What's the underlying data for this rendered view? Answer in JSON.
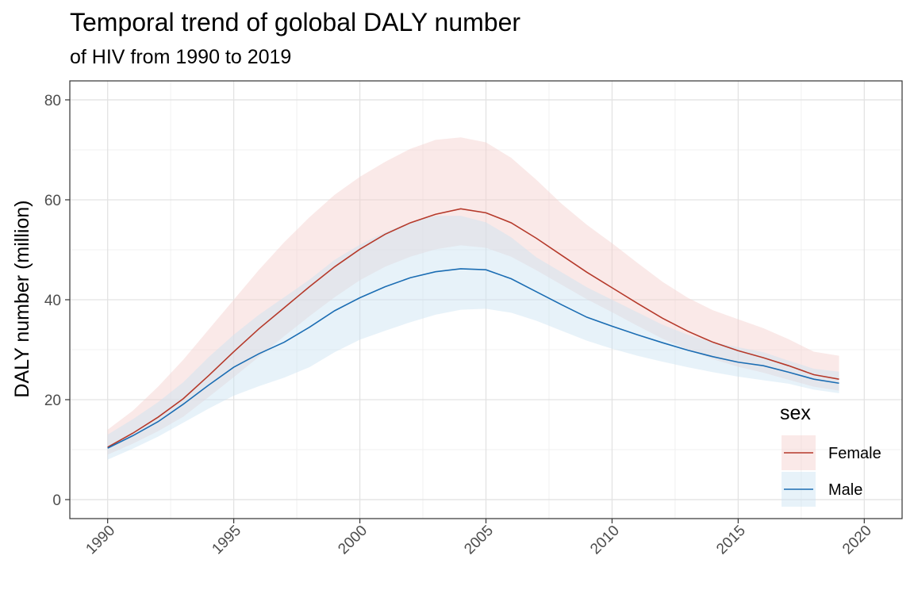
{
  "chart_data": {
    "type": "line",
    "title": "Temporal trend of golobal DALY number",
    "subtitle": "of HIV from 1990 to 2019",
    "xlabel": "",
    "ylabel": "DALY number (million)",
    "xlim": [
      1988.5,
      2021.5
    ],
    "ylim": [
      -3.8,
      83.8
    ],
    "x_ticks": [
      1990,
      1995,
      2000,
      2005,
      2010,
      2015,
      2020
    ],
    "y_ticks": [
      0,
      20,
      40,
      60,
      80
    ],
    "grid": true,
    "legend": {
      "title": "sex",
      "position": "bottom-right"
    },
    "x": [
      1990,
      1991,
      1992,
      1993,
      1994,
      1995,
      1996,
      1997,
      1998,
      1999,
      2000,
      2001,
      2002,
      2003,
      2004,
      2005,
      2006,
      2007,
      2008,
      2009,
      2010,
      2011,
      2012,
      2013,
      2014,
      2015,
      2016,
      2017,
      2018,
      2019
    ],
    "series": [
      {
        "name": "Female",
        "color": "#b5392a",
        "fill": "#f4cfcb",
        "values": [
          10.5,
          13.3,
          16.5,
          20.2,
          24.8,
          29.6,
          34.2,
          38.4,
          42.6,
          46.6,
          50.1,
          53.1,
          55.4,
          57.1,
          58.2,
          57.4,
          55.4,
          52.3,
          48.9,
          45.5,
          42.4,
          39.3,
          36.3,
          33.7,
          31.5,
          29.8,
          28.4,
          26.8,
          25.0,
          24.1
        ],
        "lower": [
          9.0,
          11.2,
          13.7,
          16.6,
          20.5,
          24.5,
          28.6,
          32.7,
          36.7,
          40.5,
          43.9,
          46.6,
          48.6,
          50.1,
          50.9,
          50.4,
          48.6,
          45.9,
          43.0,
          40.1,
          37.5,
          34.8,
          32.2,
          30.0,
          28.1,
          26.6,
          25.4,
          24.0,
          22.6,
          21.8
        ],
        "upper": [
          14.0,
          17.8,
          22.6,
          28.0,
          34.0,
          40.0,
          46.0,
          51.5,
          56.5,
          61.0,
          64.6,
          67.6,
          70.2,
          72.0,
          72.5,
          71.5,
          68.4,
          64.0,
          59.2,
          55.0,
          51.3,
          47.4,
          43.6,
          40.4,
          37.9,
          36.1,
          34.3,
          32.1,
          29.6,
          28.8
        ]
      },
      {
        "name": "Male",
        "color": "#1b6db3",
        "fill": "#c9e3f2",
        "values": [
          10.3,
          12.8,
          15.6,
          19.1,
          22.9,
          26.5,
          29.2,
          31.5,
          34.5,
          37.8,
          40.4,
          42.6,
          44.4,
          45.6,
          46.2,
          46.0,
          44.2,
          41.6,
          39.0,
          36.5,
          34.7,
          33.0,
          31.4,
          29.9,
          28.6,
          27.5,
          26.8,
          25.5,
          24.1,
          23.3
        ],
        "lower": [
          8.0,
          10.2,
          12.6,
          15.4,
          18.2,
          20.8,
          22.7,
          24.4,
          26.5,
          29.5,
          32.0,
          33.8,
          35.5,
          37.0,
          38.0,
          38.2,
          37.4,
          35.8,
          33.8,
          31.8,
          30.2,
          28.8,
          27.6,
          26.5,
          25.5,
          24.6,
          23.9,
          23.2,
          22.0,
          21.3
        ],
        "upper": [
          13.0,
          16.1,
          19.5,
          23.5,
          28.5,
          33.0,
          37.0,
          40.5,
          44.0,
          48.0,
          51.0,
          53.5,
          55.5,
          56.8,
          56.8,
          55.5,
          52.5,
          48.5,
          45.5,
          42.5,
          40.0,
          37.5,
          35.0,
          33.0,
          31.5,
          30.5,
          29.5,
          27.8,
          26.2,
          25.6
        ]
      }
    ]
  }
}
